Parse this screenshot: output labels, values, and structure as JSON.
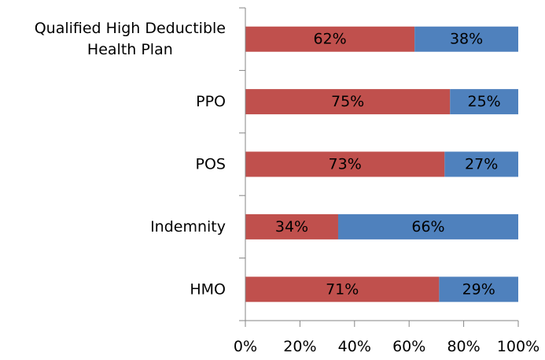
{
  "chart_data": {
    "type": "bar",
    "orientation": "horizontal",
    "stacked": true,
    "percent_stacked": true,
    "categories": [
      "Qualified High Deductible Health Plan",
      "PPO",
      "POS",
      "Indemnity",
      "HMO"
    ],
    "category_label_lines": [
      [
        "Qualified High Deductible",
        "Health Plan"
      ],
      [
        "PPO"
      ],
      [
        "POS"
      ],
      [
        "Indemnity"
      ],
      [
        "HMO"
      ]
    ],
    "series": [
      {
        "color": "#C0504D",
        "values": [
          62,
          75,
          73,
          34,
          71
        ],
        "labels": [
          "62%",
          "75%",
          "73%",
          "34%",
          "71%"
        ]
      },
      {
        "color": "#4F81BD",
        "values": [
          38,
          25,
          27,
          66,
          29
        ],
        "labels": [
          "38%",
          "25%",
          "27%",
          "66%",
          "29%"
        ]
      }
    ],
    "xlim": [
      0,
      100
    ],
    "x_ticks": [
      0,
      20,
      40,
      60,
      80,
      100
    ],
    "x_tick_labels": [
      "0%",
      "20%",
      "40%",
      "60%",
      "80%",
      "100%"
    ],
    "title": "",
    "xlabel": "",
    "ylabel": "",
    "grid": false,
    "legend": "none"
  }
}
